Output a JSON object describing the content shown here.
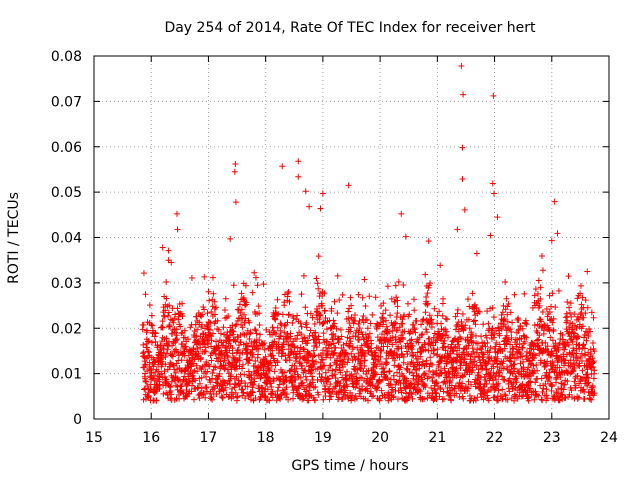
{
  "chart_data": {
    "type": "scatter",
    "title": "Day 254 of 2014, Rate Of TEC Index for receiver hert",
    "xlabel": "GPS time / hours",
    "ylabel": "ROTI / TECUs",
    "xlim": [
      15,
      24
    ],
    "ylim": [
      0,
      0.08
    ],
    "xticks": [
      "15",
      "16",
      "17",
      "18",
      "19",
      "20",
      "21",
      "22",
      "23",
      "24"
    ],
    "yticks": [
      "0",
      "0.01",
      "0.02",
      "0.03",
      "0.04",
      "0.05",
      "0.06",
      "0.07",
      "0.08"
    ],
    "grid": true,
    "marker": "+",
    "color": "#ff0000",
    "x_range_of_points": [
      15.85,
      23.75
    ],
    "notable_points": [
      {
        "x": 21.42,
        "y": 0.0778
      },
      {
        "x": 21.45,
        "y": 0.0715
      },
      {
        "x": 21.98,
        "y": 0.0712
      },
      {
        "x": 21.44,
        "y": 0.0598
      },
      {
        "x": 18.57,
        "y": 0.0568
      },
      {
        "x": 17.47,
        "y": 0.0562
      },
      {
        "x": 18.29,
        "y": 0.0557
      },
      {
        "x": 17.46,
        "y": 0.0545
      },
      {
        "x": 18.57,
        "y": 0.0534
      },
      {
        "x": 19.45,
        "y": 0.0515
      },
      {
        "x": 21.97,
        "y": 0.0519
      },
      {
        "x": 21.44,
        "y": 0.0529
      },
      {
        "x": 18.7,
        "y": 0.0502
      },
      {
        "x": 19.0,
        "y": 0.0497
      },
      {
        "x": 21.99,
        "y": 0.0497
      },
      {
        "x": 17.48,
        "y": 0.0478
      },
      {
        "x": 23.05,
        "y": 0.0479
      },
      {
        "x": 18.76,
        "y": 0.0468
      },
      {
        "x": 16.45,
        "y": 0.0452
      },
      {
        "x": 20.37,
        "y": 0.0452
      },
      {
        "x": 21.48,
        "y": 0.0461
      },
      {
        "x": 22.05,
        "y": 0.0445
      },
      {
        "x": 16.46,
        "y": 0.0418
      },
      {
        "x": 23.1,
        "y": 0.0409
      },
      {
        "x": 17.38,
        "y": 0.0397
      },
      {
        "x": 20.45,
        "y": 0.0402
      },
      {
        "x": 16.2,
        "y": 0.0378
      },
      {
        "x": 20.85,
        "y": 0.0392
      },
      {
        "x": 21.35,
        "y": 0.0418
      },
      {
        "x": 23.0,
        "y": 0.0393
      },
      {
        "x": 16.35,
        "y": 0.0345
      },
      {
        "x": 23.62,
        "y": 0.0325
      },
      {
        "x": 15.9,
        "y": 0.0275
      },
      {
        "x": 23.7,
        "y": 0.0235
      }
    ]
  }
}
